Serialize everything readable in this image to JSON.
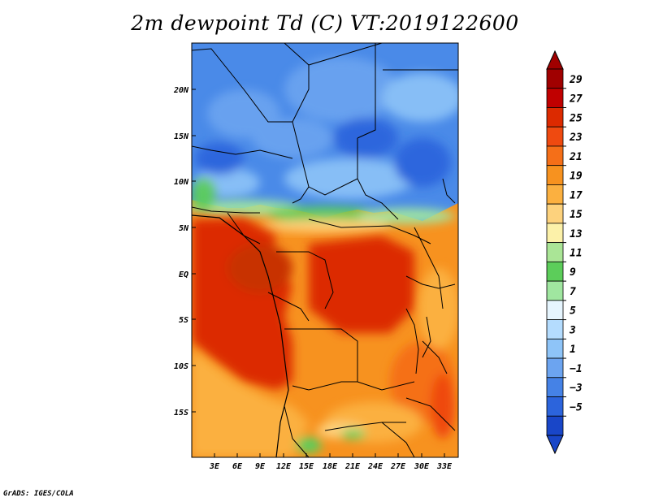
{
  "title": "2m dewpoint Td (C) VT:2019122600",
  "credit": "GrADS: IGES/COLA",
  "map": {
    "lat_labels": [
      "20N",
      "15N",
      "10N",
      "5N",
      "EQ",
      "5S",
      "10S",
      "15S"
    ],
    "lon_labels": [
      "3E",
      "6E",
      "9E",
      "12E",
      "15E",
      "18E",
      "21E",
      "24E",
      "27E",
      "30E",
      "33E"
    ]
  },
  "colorbar": {
    "labels": [
      "29",
      "27",
      "25",
      "23",
      "21",
      "19",
      "17",
      "15",
      "13",
      "11",
      "9",
      "7",
      "5",
      "3",
      "1",
      "−1",
      "−3",
      "−5"
    ],
    "colors": [
      "#a00000",
      "#c00000",
      "#dc2a00",
      "#ef4a10",
      "#f56f18",
      "#f7921f",
      "#fbb040",
      "#fdd27d",
      "#fcf1a9",
      "#aae596",
      "#5ccd5a",
      "#a0e6a0",
      "#e6f5fe",
      "#b4dcfe",
      "#8ec4f8",
      "#6ca4f0",
      "#4582e6",
      "#2c64dc",
      "#1946c8"
    ],
    "max_color": "#a00000",
    "min_color": "#1946c8"
  }
}
